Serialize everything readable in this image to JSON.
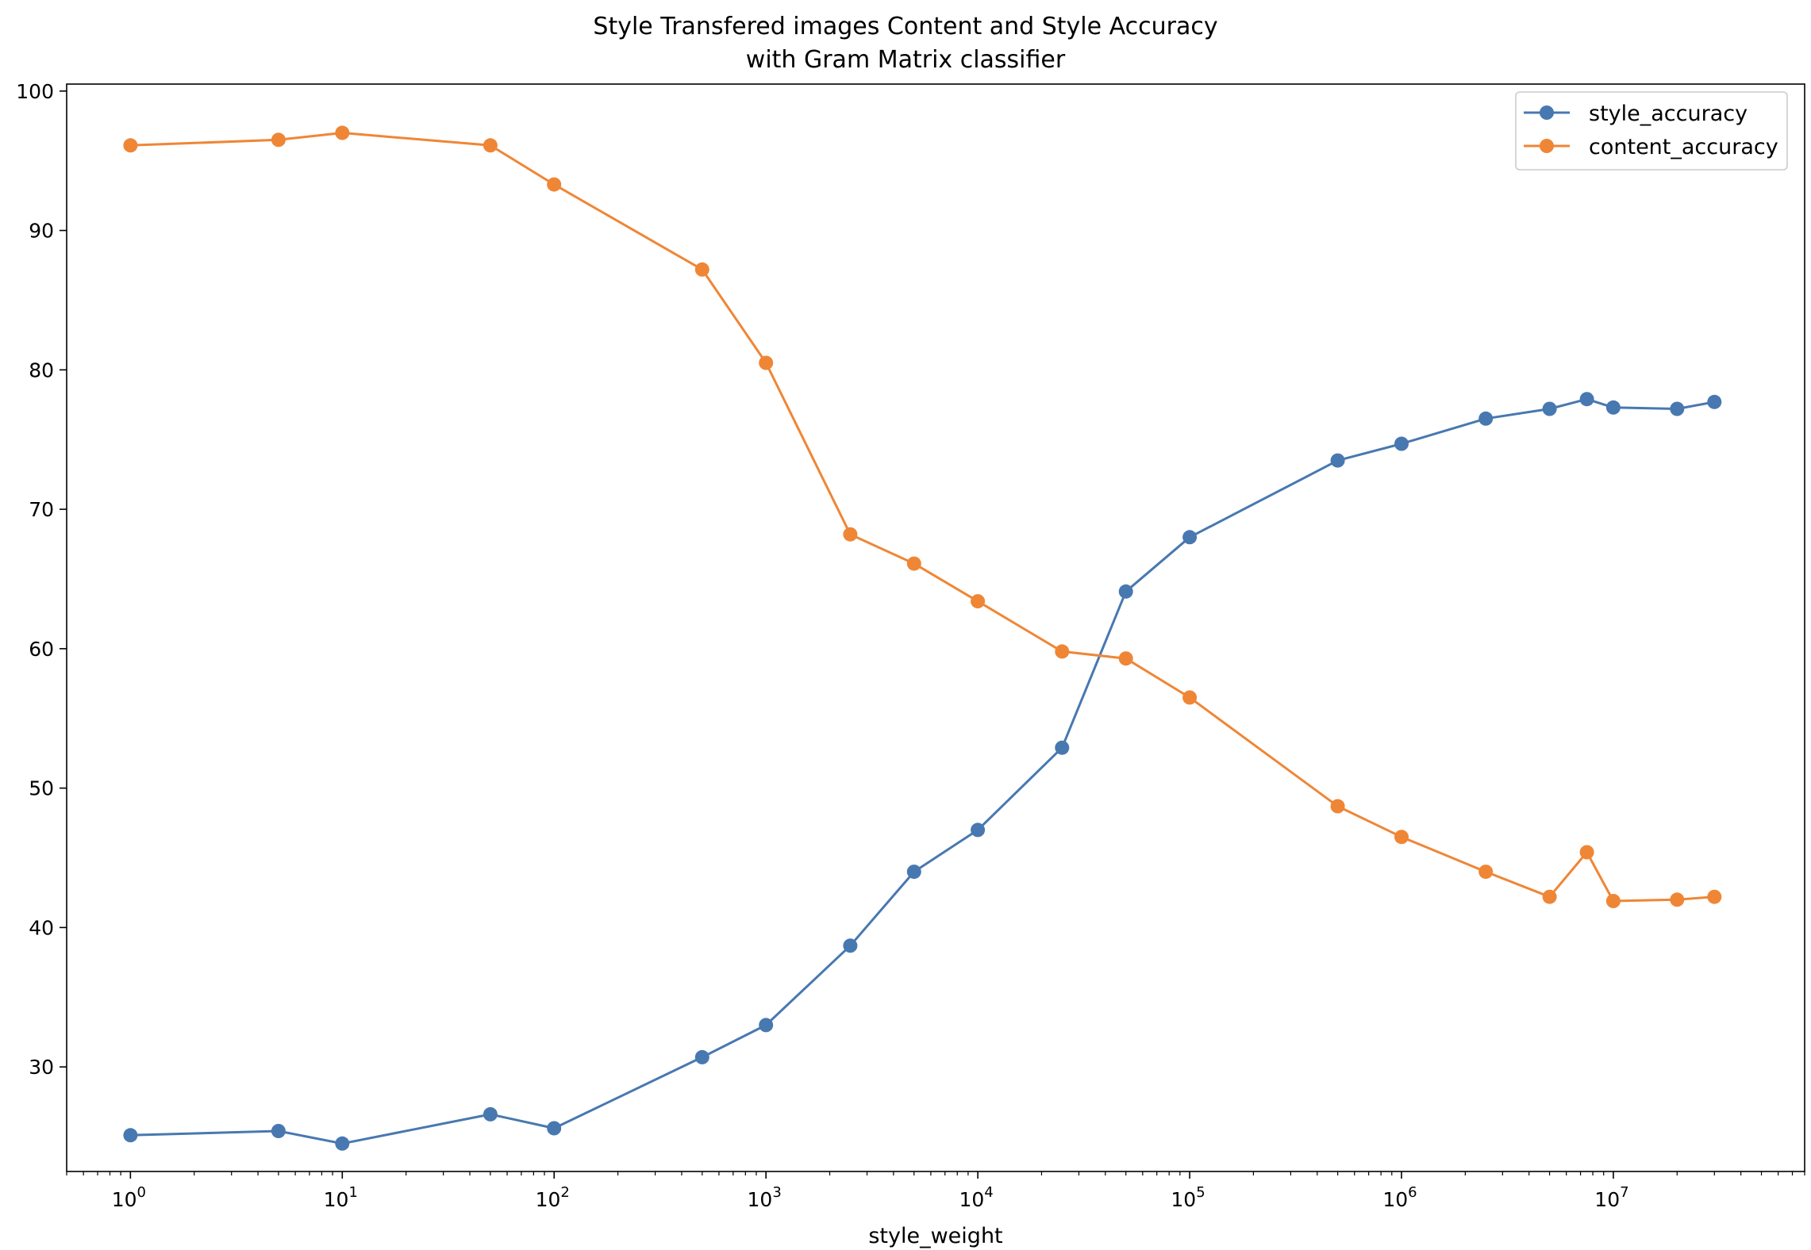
{
  "chart_data": {
    "type": "line",
    "title": [
      "Style Transfered images Content and Style Accuracy",
      "with Gram Matrix classifier"
    ],
    "xlabel": "style_weight",
    "ylabel": "",
    "xscale": "log",
    "xlim": [
      0.5,
      80000000
    ],
    "ylim": [
      22.5,
      100.5
    ],
    "yticks": [
      30,
      40,
      50,
      60,
      70,
      80,
      90,
      100
    ],
    "xticks": [
      1,
      10,
      100,
      1000,
      10000,
      100000,
      1000000,
      10000000
    ],
    "xtick_labels": [
      "10^0",
      "10^1",
      "10^2",
      "10^3",
      "10^4",
      "10^5",
      "10^6",
      "10^7"
    ],
    "grid": false,
    "legend_position": "upper right",
    "x": [
      1,
      5,
      10,
      50,
      100,
      500,
      1000,
      2500,
      5000,
      10000,
      25000,
      50000,
      100000,
      500000,
      1000000,
      2500000,
      5000000,
      7500000,
      10000000,
      20000000,
      30000000
    ],
    "series": [
      {
        "name": "style_accuracy",
        "color": "#4878b0",
        "values": [
          25.1,
          25.4,
          24.5,
          26.6,
          25.6,
          30.7,
          33.0,
          38.7,
          44.0,
          47.0,
          52.9,
          64.1,
          68.0,
          73.5,
          74.7,
          76.5,
          77.2,
          77.9,
          77.3,
          77.2,
          77.7
        ]
      },
      {
        "name": "content_accuracy",
        "color": "#ef8636",
        "values": [
          96.1,
          96.5,
          97.0,
          96.1,
          93.3,
          87.2,
          80.5,
          68.2,
          66.1,
          63.4,
          59.8,
          59.3,
          56.5,
          48.7,
          46.5,
          44.0,
          42.2,
          45.4,
          41.9,
          42.0,
          42.2
        ]
      }
    ]
  }
}
